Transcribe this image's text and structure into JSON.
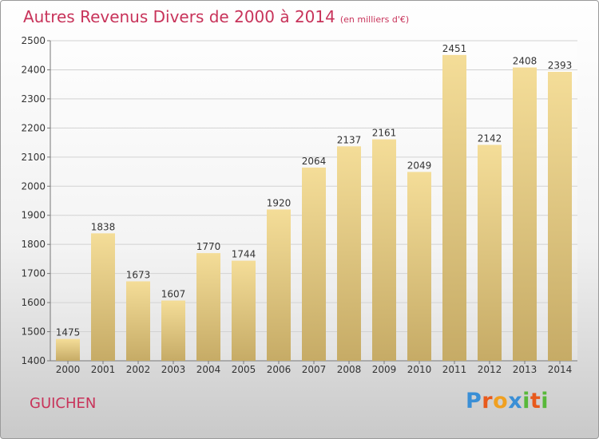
{
  "chart_data": {
    "type": "bar",
    "title": "Autres Revenus Divers de 2000 à 2014",
    "unit_note": "(en milliers d'€)",
    "categories": [
      "2000",
      "2001",
      "2002",
      "2003",
      "2004",
      "2005",
      "2006",
      "2007",
      "2008",
      "2009",
      "2010",
      "2011",
      "2012",
      "2013",
      "2014"
    ],
    "values": [
      1475,
      1838,
      1673,
      1607,
      1770,
      1744,
      1920,
      2064,
      2137,
      2161,
      2049,
      2451,
      2142,
      2408,
      2393
    ],
    "ylim": [
      1400,
      2500
    ],
    "yticks": [
      1400,
      1500,
      1600,
      1700,
      1800,
      1900,
      2000,
      2100,
      2200,
      2300,
      2400,
      2500
    ],
    "grid": true,
    "bar_color_light": "#f4dd98",
    "bar_color_dark": "#c6ab66"
  },
  "commune": "GUICHEN",
  "brand": {
    "letters": [
      "P",
      "r",
      "o",
      "x",
      "i",
      "t",
      "i"
    ],
    "colors": [
      "#3a8fd6",
      "#e85a1c",
      "#f0a020",
      "#3a8fd6",
      "#58b83a",
      "#e85a1c",
      "#58b83a"
    ]
  },
  "colors": {
    "title": "#c8335a"
  }
}
